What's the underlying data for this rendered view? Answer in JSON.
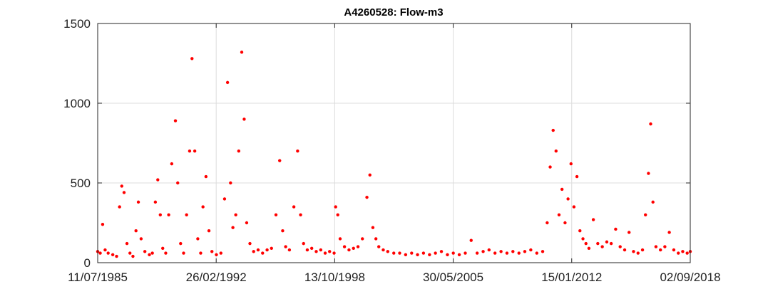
{
  "chart_data": {
    "type": "scatter",
    "title": "A4260528: Flow-m3",
    "xlabel": "",
    "ylabel": "",
    "x_type": "date",
    "xlim": [
      "1985-07-11",
      "2018-09-02"
    ],
    "ylim": [
      0,
      1500
    ],
    "x_ticks": [
      "1985-07-11",
      "1992-02-26",
      "1998-10-13",
      "2005-05-30",
      "2012-01-15",
      "2018-09-02"
    ],
    "x_tick_labels": [
      "11/07/1985",
      "26/02/1992",
      "13/10/1998",
      "30/05/2005",
      "15/01/2012",
      "02/09/2018"
    ],
    "y_ticks": [
      0,
      500,
      1000,
      1500
    ],
    "y_tick_labels": [
      "0",
      "500",
      "1000",
      "1500"
    ],
    "grid": true,
    "marker_color": "#ff0000",
    "series": [
      {
        "name": "",
        "points": [
          [
            "1985-07-11",
            70
          ],
          [
            "1985-09-01",
            60
          ],
          [
            "1985-10-20",
            240
          ],
          [
            "1985-12-10",
            80
          ],
          [
            "1986-02-10",
            60
          ],
          [
            "1986-05-15",
            50
          ],
          [
            "1986-08-01",
            40
          ],
          [
            "1986-10-01",
            350
          ],
          [
            "1986-11-15",
            480
          ],
          [
            "1987-01-01",
            440
          ],
          [
            "1987-03-01",
            120
          ],
          [
            "1987-05-01",
            60
          ],
          [
            "1987-07-01",
            40
          ],
          [
            "1987-09-01",
            200
          ],
          [
            "1987-10-20",
            380
          ],
          [
            "1987-12-15",
            150
          ],
          [
            "1988-03-01",
            70
          ],
          [
            "1988-06-01",
            50
          ],
          [
            "1988-08-01",
            60
          ],
          [
            "1988-10-01",
            380
          ],
          [
            "1988-11-20",
            520
          ],
          [
            "1989-01-10",
            300
          ],
          [
            "1989-03-01",
            90
          ],
          [
            "1989-05-01",
            60
          ],
          [
            "1989-07-01",
            300
          ],
          [
            "1989-09-01",
            620
          ],
          [
            "1989-11-15",
            890
          ],
          [
            "1990-01-01",
            500
          ],
          [
            "1990-03-01",
            120
          ],
          [
            "1990-05-01",
            60
          ],
          [
            "1990-07-01",
            300
          ],
          [
            "1990-09-01",
            700
          ],
          [
            "1990-10-20",
            1280
          ],
          [
            "1990-12-15",
            700
          ],
          [
            "1991-02-15",
            150
          ],
          [
            "1991-04-15",
            60
          ],
          [
            "1991-06-01",
            350
          ],
          [
            "1991-08-01",
            540
          ],
          [
            "1991-10-01",
            200
          ],
          [
            "1991-12-01",
            70
          ],
          [
            "1992-03-01",
            50
          ],
          [
            "1992-06-01",
            60
          ],
          [
            "1992-08-15",
            400
          ],
          [
            "1992-10-15",
            1130
          ],
          [
            "1992-12-15",
            500
          ],
          [
            "1993-02-01",
            220
          ],
          [
            "1993-04-01",
            300
          ],
          [
            "1993-06-01",
            700
          ],
          [
            "1993-08-01",
            1320
          ],
          [
            "1993-09-20",
            900
          ],
          [
            "1993-11-10",
            250
          ],
          [
            "1994-01-15",
            120
          ],
          [
            "1994-04-01",
            70
          ],
          [
            "1994-07-01",
            80
          ],
          [
            "1994-10-01",
            60
          ],
          [
            "1995-01-01",
            80
          ],
          [
            "1995-04-01",
            90
          ],
          [
            "1995-07-01",
            300
          ],
          [
            "1995-09-15",
            640
          ],
          [
            "1995-11-15",
            200
          ],
          [
            "1996-01-15",
            100
          ],
          [
            "1996-04-01",
            80
          ],
          [
            "1996-07-01",
            350
          ],
          [
            "1996-09-15",
            700
          ],
          [
            "1996-11-15",
            300
          ],
          [
            "1997-01-15",
            120
          ],
          [
            "1997-04-01",
            80
          ],
          [
            "1997-07-01",
            90
          ],
          [
            "1997-10-01",
            70
          ],
          [
            "1998-01-01",
            80
          ],
          [
            "1998-04-01",
            60
          ],
          [
            "1998-07-01",
            70
          ],
          [
            "1998-10-01",
            60
          ],
          [
            "1998-11-01",
            350
          ],
          [
            "1998-12-15",
            300
          ],
          [
            "1999-02-01",
            150
          ],
          [
            "1999-05-01",
            100
          ],
          [
            "1999-08-01",
            80
          ],
          [
            "1999-11-01",
            90
          ],
          [
            "2000-02-01",
            100
          ],
          [
            "2000-05-01",
            150
          ],
          [
            "2000-08-01",
            410
          ],
          [
            "2000-10-01",
            550
          ],
          [
            "2000-12-01",
            220
          ],
          [
            "2001-02-01",
            150
          ],
          [
            "2001-04-01",
            100
          ],
          [
            "2001-07-01",
            80
          ],
          [
            "2001-10-01",
            70
          ],
          [
            "2002-02-01",
            60
          ],
          [
            "2002-06-01",
            60
          ],
          [
            "2002-10-01",
            50
          ],
          [
            "2003-02-01",
            60
          ],
          [
            "2003-06-01",
            50
          ],
          [
            "2003-10-01",
            60
          ],
          [
            "2004-02-01",
            50
          ],
          [
            "2004-06-01",
            60
          ],
          [
            "2004-10-01",
            70
          ],
          [
            "2005-02-01",
            50
          ],
          [
            "2005-06-01",
            60
          ],
          [
            "2005-10-01",
            50
          ],
          [
            "2006-02-01",
            60
          ],
          [
            "2006-06-01",
            140
          ],
          [
            "2006-10-01",
            60
          ],
          [
            "2007-02-01",
            70
          ],
          [
            "2007-06-01",
            80
          ],
          [
            "2007-10-01",
            60
          ],
          [
            "2008-02-01",
            70
          ],
          [
            "2008-06-01",
            60
          ],
          [
            "2008-10-01",
            70
          ],
          [
            "2009-02-01",
            60
          ],
          [
            "2009-06-01",
            70
          ],
          [
            "2009-10-01",
            80
          ],
          [
            "2010-02-01",
            60
          ],
          [
            "2010-06-01",
            70
          ],
          [
            "2010-09-01",
            250
          ],
          [
            "2010-11-01",
            600
          ],
          [
            "2011-01-01",
            830
          ],
          [
            "2011-03-01",
            700
          ],
          [
            "2011-05-01",
            300
          ],
          [
            "2011-07-01",
            460
          ],
          [
            "2011-09-01",
            250
          ],
          [
            "2011-11-01",
            400
          ],
          [
            "2012-01-01",
            620
          ],
          [
            "2012-03-01",
            350
          ],
          [
            "2012-05-01",
            540
          ],
          [
            "2012-07-01",
            200
          ],
          [
            "2012-09-01",
            150
          ],
          [
            "2012-11-01",
            120
          ],
          [
            "2013-01-01",
            90
          ],
          [
            "2013-04-01",
            270
          ],
          [
            "2013-07-01",
            120
          ],
          [
            "2013-10-01",
            100
          ],
          [
            "2014-01-01",
            130
          ],
          [
            "2014-04-01",
            120
          ],
          [
            "2014-07-01",
            210
          ],
          [
            "2014-10-01",
            100
          ],
          [
            "2015-01-01",
            80
          ],
          [
            "2015-04-01",
            190
          ],
          [
            "2015-07-01",
            70
          ],
          [
            "2015-10-01",
            60
          ],
          [
            "2016-01-01",
            80
          ],
          [
            "2016-03-01",
            300
          ],
          [
            "2016-05-01",
            560
          ],
          [
            "2016-06-15",
            870
          ],
          [
            "2016-08-01",
            380
          ],
          [
            "2016-10-01",
            100
          ],
          [
            "2017-01-01",
            80
          ],
          [
            "2017-04-01",
            100
          ],
          [
            "2017-07-01",
            190
          ],
          [
            "2017-10-01",
            80
          ],
          [
            "2018-01-01",
            60
          ],
          [
            "2018-04-01",
            70
          ],
          [
            "2018-07-01",
            60
          ],
          [
            "2018-09-02",
            70
          ]
        ]
      }
    ]
  }
}
